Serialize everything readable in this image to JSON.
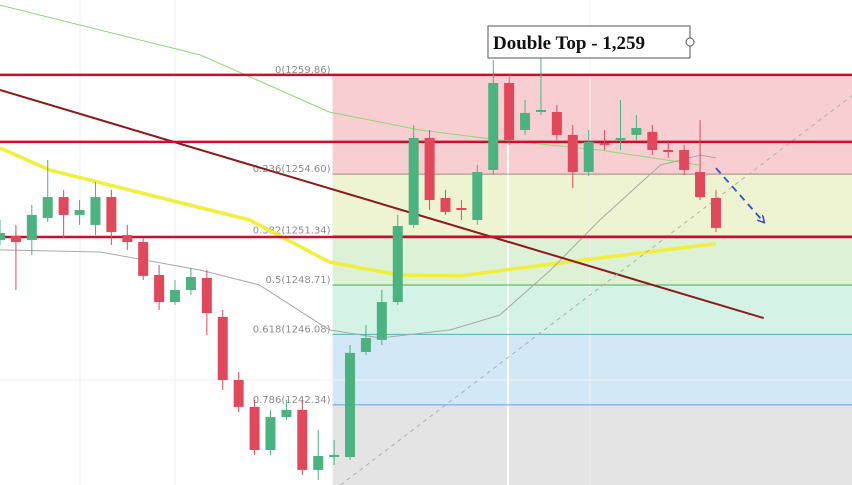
{
  "chart_data": {
    "type": "candlestick",
    "annotation": "Double Top - 1,259",
    "xlim": [
      0,
      53.55
    ],
    "ylim": [
      1238.08,
      1263.85
    ],
    "up_color": "#4cb27f",
    "down_color": "#e2485b",
    "open": [
      1251.1,
      1251.31,
      1251.1,
      1252.27,
      1253.38,
      1252.43,
      1251.9,
      1253.38,
      1251.36,
      1250.99,
      1249.24,
      1247.8,
      1248.44,
      1249.08,
      1247.01,
      1243.66,
      1242.23,
      1239.94,
      1241.69,
      1242.07,
      1238.88,
      1239.57,
      1239.57,
      1245.15,
      1245.79,
      1247.8,
      1251.9,
      1256.52,
      1253.33,
      1252.8,
      1252.16,
      1254.82,
      1259.44,
      1256.94,
      1257.9,
      1257.9,
      1256.68,
      1254.71,
      1256.25,
      1256.41,
      1256.68,
      1256.84,
      1255.88,
      1255.88,
      1254.71,
      1253.33
    ],
    "high": [
      1252.16,
      1251.9,
      1252.96,
      1255.35,
      1253.76,
      1253.22,
      1254.18,
      1253.76,
      1251.9,
      1251.21,
      1249.77,
      1248.97,
      1249.61,
      1249.5,
      1247.38,
      1244.09,
      1242.6,
      1242.07,
      1242.6,
      1242.6,
      1241.0,
      1240.47,
      1245.52,
      1246.58,
      1248.44,
      1252.43,
      1257.21,
      1256.94,
      1253.76,
      1253.22,
      1255.08,
      1260.66,
      1259.87,
      1258.54,
      1260.93,
      1258.27,
      1257.21,
      1256.94,
      1256.94,
      1258.54,
      1257.74,
      1257.21,
      1256.41,
      1256.15,
      1257.47,
      1253.76
    ],
    "low": [
      1250.83,
      1248.44,
      1250.3,
      1252.06,
      1251.21,
      1251.9,
      1251.36,
      1250.83,
      1250.57,
      1248.97,
      1247.38,
      1247.65,
      1248.18,
      1246.05,
      1243.13,
      1241.96,
      1239.68,
      1239.68,
      1241.54,
      1238.61,
      1238.35,
      1239.14,
      1239.41,
      1244.99,
      1245.52,
      1247.65,
      1251.74,
      1252.69,
      1252.43,
      1252.16,
      1251.9,
      1254.55,
      1256.15,
      1256.68,
      1257.74,
      1256.41,
      1253.86,
      1254.5,
      1255.88,
      1255.88,
      1256.41,
      1255.61,
      1255.46,
      1254.55,
      1253.22,
      1251.52
    ],
    "close": [
      1251.47,
      1250.99,
      1252.43,
      1253.38,
      1252.43,
      1252.69,
      1253.38,
      1251.52,
      1250.99,
      1249.19,
      1247.8,
      1248.44,
      1249.13,
      1247.22,
      1243.66,
      1242.23,
      1239.94,
      1241.69,
      1242.07,
      1238.88,
      1239.62,
      1239.68,
      1245.1,
      1245.89,
      1247.8,
      1251.84,
      1256.52,
      1253.22,
      1252.59,
      1252.69,
      1254.71,
      1259.44,
      1256.41,
      1257.85,
      1258.01,
      1256.68,
      1254.71,
      1256.31,
      1256.15,
      1256.52,
      1257.05,
      1255.88,
      1255.77,
      1254.82,
      1253.38,
      1251.74
    ],
    "fib_start": 20.9,
    "fib_levels": [
      {
        "value": 1259.86,
        "label": "0(1259.86)",
        "color": "#e57373",
        "zone": "#f7cfd2"
      },
      {
        "value": 1254.6,
        "label": "0.236(1254.60)",
        "color": "#a1887f",
        "zone": "#eef4d2"
      },
      {
        "value": 1251.34,
        "label": "0.382(1251.34)",
        "color": "#9ccc65",
        "zone": "#dcf1d6"
      },
      {
        "value": 1248.71,
        "label": "0.5(1248.71)",
        "color": "#4caf50",
        "zone": "#d4f2e6"
      },
      {
        "value": 1246.08,
        "label": "0.618(1246.08)",
        "color": "#4db6ac",
        "zone": "#d3e8f6"
      },
      {
        "value": 1242.34,
        "label": "0.786(1242.34)",
        "color": "#64a0d8",
        "zone": "#e4e4e4"
      }
    ],
    "horizontal_lines": {
      "color": "#c8102e",
      "values": [
        1259.87,
        1256.31,
        1251.26
      ]
    },
    "overlays": [
      {
        "color": "#8fd873",
        "line_width": 1,
        "dashed": false,
        "x": [
          0,
          12.6,
          20.7,
          26.4,
          31.4,
          37.7,
          44
        ],
        "values": [
          1263.58,
          1260.93,
          1257.9,
          1256.94,
          1256.41,
          1255.88,
          1255.08
        ]
      },
      {
        "color": "#f2ef3a",
        "line_width": 3.5,
        "dashed": false,
        "x": [
          0,
          3.1,
          9.4,
          15.7,
          20.7,
          25.1,
          28.9,
          32.7,
          37.7,
          42.7,
          45
        ],
        "values": [
          1255.99,
          1254.82,
          1253.49,
          1252.16,
          1249.93,
          1249.24,
          1249.19,
          1249.61,
          1250.14,
          1250.67,
          1250.89
        ]
      },
      {
        "color": "#a8a8a8",
        "line_width": 1,
        "dashed": false,
        "x": [
          0,
          6.3,
          12.6,
          16.3,
          20.7,
          23.9,
          28.3,
          31.4,
          34.6,
          37.7,
          41.5,
          44,
          45
        ],
        "values": [
          1250.57,
          1250.46,
          1249.5,
          1248.71,
          1246.32,
          1245.89,
          1246.32,
          1247.11,
          1249.5,
          1252.16,
          1255.08,
          1255.61,
          1255.46
        ]
      },
      {
        "color": "#8b1a1a",
        "line_width": 2,
        "dashed": false,
        "x": [
          0,
          48.0
        ],
        "values": [
          1259.07,
          1246.95
        ]
      },
      {
        "color": "#b0b0b0",
        "line_width": 1,
        "dashed": true,
        "x": [
          21.4,
          53.6
        ],
        "values": [
          1238.08,
          1258.8
        ]
      },
      {
        "color": "#2a4fd6",
        "line_width": 1.8,
        "dashed": true,
        "arrow": true,
        "x": [
          45,
          48
        ],
        "values": [
          1254.92,
          1252.06
        ]
      }
    ]
  }
}
